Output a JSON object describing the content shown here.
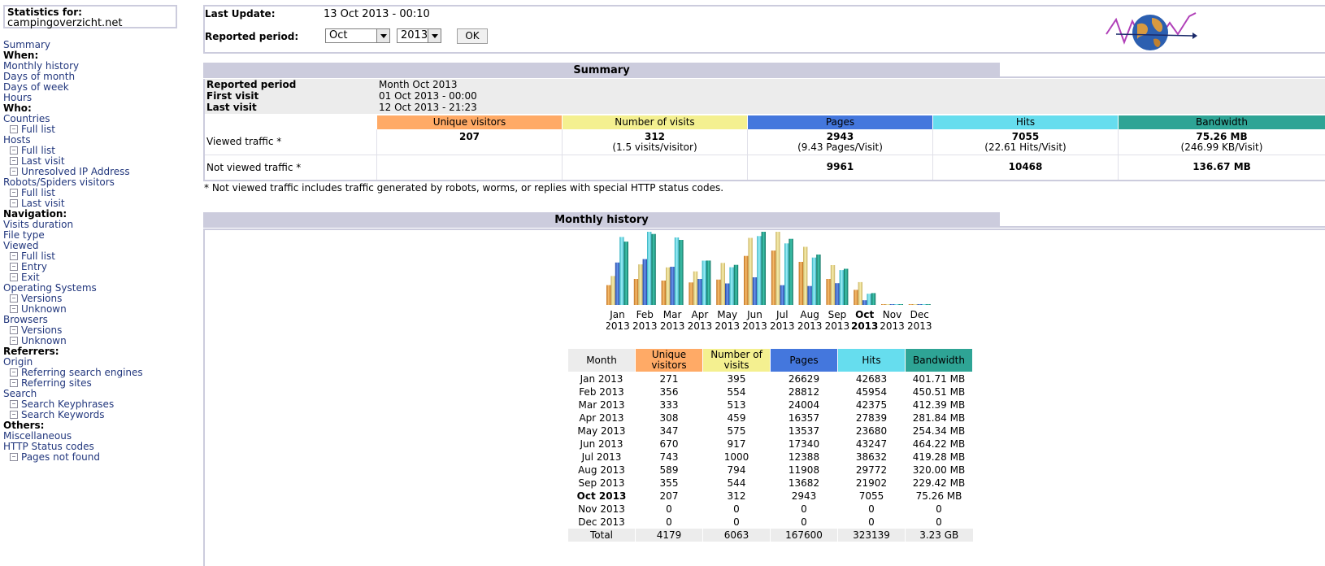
{
  "colors": {
    "unique_visitors": "#ffaa66",
    "visits": "#f4f090",
    "pages": "#4477dd",
    "hits": "#66ddee",
    "bandwidth": "#2ea495",
    "section_header": "#ccccdd"
  },
  "sidebar": {
    "stats_for_label": "Statistics for:",
    "site": "campingoverzicht.net",
    "items": [
      {
        "label": "Summary",
        "type": "link",
        "name": "menu-summary"
      },
      {
        "label": "When:",
        "type": "header",
        "name": "menu-header-when"
      },
      {
        "label": "Monthly history",
        "type": "link",
        "name": "menu-monthly-history"
      },
      {
        "label": "Days of month",
        "type": "link",
        "name": "menu-days-of-month"
      },
      {
        "label": "Days of week",
        "type": "link",
        "name": "menu-days-of-week"
      },
      {
        "label": "Hours",
        "type": "link",
        "name": "menu-hours"
      },
      {
        "label": "Who:",
        "type": "header",
        "name": "menu-header-who"
      },
      {
        "label": "Countries",
        "type": "link",
        "name": "menu-countries"
      },
      {
        "label": "Full list",
        "type": "sub",
        "name": "menu-countries-full-list"
      },
      {
        "label": "Hosts",
        "type": "link",
        "name": "menu-hosts"
      },
      {
        "label": "Full list",
        "type": "sub",
        "name": "menu-hosts-full-list"
      },
      {
        "label": "Last visit",
        "type": "sub",
        "name": "menu-hosts-last-visit"
      },
      {
        "label": "Unresolved IP Address",
        "type": "sub",
        "name": "menu-hosts-unresolved-ip"
      },
      {
        "label": "Robots/Spiders visitors",
        "type": "link",
        "name": "menu-robots"
      },
      {
        "label": "Full list",
        "type": "sub",
        "name": "menu-robots-full-list"
      },
      {
        "label": "Last visit",
        "type": "sub",
        "name": "menu-robots-last-visit"
      },
      {
        "label": "Navigation:",
        "type": "header",
        "name": "menu-header-navigation"
      },
      {
        "label": "Visits duration",
        "type": "link",
        "name": "menu-visits-duration"
      },
      {
        "label": "File type",
        "type": "link",
        "name": "menu-file-type"
      },
      {
        "label": "Viewed",
        "type": "link",
        "name": "menu-viewed"
      },
      {
        "label": "Full list",
        "type": "sub",
        "name": "menu-viewed-full-list"
      },
      {
        "label": "Entry",
        "type": "sub",
        "name": "menu-viewed-entry"
      },
      {
        "label": "Exit",
        "type": "sub",
        "name": "menu-viewed-exit"
      },
      {
        "label": "Operating Systems",
        "type": "link",
        "name": "menu-operating-systems"
      },
      {
        "label": "Versions",
        "type": "sub",
        "name": "menu-os-versions"
      },
      {
        "label": "Unknown",
        "type": "sub",
        "name": "menu-os-unknown"
      },
      {
        "label": "Browsers",
        "type": "link",
        "name": "menu-browsers"
      },
      {
        "label": "Versions",
        "type": "sub",
        "name": "menu-browsers-versions"
      },
      {
        "label": "Unknown",
        "type": "sub",
        "name": "menu-browsers-unknown"
      },
      {
        "label": "Referrers:",
        "type": "header",
        "name": "menu-header-referrers"
      },
      {
        "label": "Origin",
        "type": "link",
        "name": "menu-origin"
      },
      {
        "label": "Referring search engines",
        "type": "sub",
        "name": "menu-referring-search-engines"
      },
      {
        "label": "Referring sites",
        "type": "sub",
        "name": "menu-referring-sites"
      },
      {
        "label": "Search",
        "type": "link",
        "name": "menu-search"
      },
      {
        "label": "Search Keyphrases",
        "type": "sub",
        "name": "menu-search-keyphrases"
      },
      {
        "label": "Search Keywords",
        "type": "sub",
        "name": "menu-search-keywords"
      },
      {
        "label": "Others:",
        "type": "header",
        "name": "menu-header-others"
      },
      {
        "label": "Miscellaneous",
        "type": "link",
        "name": "menu-miscellaneous"
      },
      {
        "label": "HTTP Status codes",
        "type": "link",
        "name": "menu-http-status-codes"
      },
      {
        "label": "Pages not found",
        "type": "sub",
        "name": "menu-pages-not-found"
      }
    ]
  },
  "top": {
    "last_update_label": "Last Update:",
    "last_update_value": "13 Oct 2013 - 00:10",
    "reported_period_label": "Reported period:",
    "month_select": "Oct",
    "year_select": "2013",
    "ok_label": "OK",
    "logo_icon": "awstats-globe-logo"
  },
  "summary": {
    "title": "Summary",
    "reported_period_label": "Reported period",
    "reported_period_value": "Month Oct 2013",
    "first_visit_label": "First visit",
    "first_visit_value": "01 Oct 2013 - 00:00",
    "last_visit_label": "Last visit",
    "last_visit_value": "12 Oct 2013 - 21:23",
    "headers": [
      "Unique visitors",
      "Number of visits",
      "Pages",
      "Hits",
      "Bandwidth"
    ],
    "viewed_label": "Viewed traffic *",
    "viewed": {
      "unique": "207",
      "visits": "312",
      "visits_sub": "(1.5 visits/visitor)",
      "pages": "2943",
      "pages_sub": "(9.43 Pages/Visit)",
      "hits": "7055",
      "hits_sub": "(22.61 Hits/Visit)",
      "bandwidth": "75.26 MB",
      "bandwidth_sub": "(246.99 KB/Visit)"
    },
    "not_viewed_label": "Not viewed traffic *",
    "not_viewed": {
      "pages": "9961",
      "hits": "10468",
      "bandwidth": "136.67 MB"
    },
    "note": "* Not viewed traffic includes traffic generated by robots, worms, or replies with special HTTP status codes."
  },
  "history": {
    "title": "Monthly history",
    "headers": {
      "month": "Month",
      "unique": "Unique visitors",
      "visits": "Number of visits",
      "pages": "Pages",
      "hits": "Hits",
      "bandwidth": "Bandwidth"
    },
    "rows": [
      {
        "month": "Jan 2013",
        "unique": "271",
        "visits": "395",
        "pages": "26629",
        "hits": "42683",
        "bandwidth": "401.71 MB",
        "current": false
      },
      {
        "month": "Feb 2013",
        "unique": "356",
        "visits": "554",
        "pages": "28812",
        "hits": "45954",
        "bandwidth": "450.51 MB",
        "current": false
      },
      {
        "month": "Mar 2013",
        "unique": "333",
        "visits": "513",
        "pages": "24004",
        "hits": "42375",
        "bandwidth": "412.39 MB",
        "current": false
      },
      {
        "month": "Apr 2013",
        "unique": "308",
        "visits": "459",
        "pages": "16357",
        "hits": "27839",
        "bandwidth": "281.84 MB",
        "current": false
      },
      {
        "month": "May 2013",
        "unique": "347",
        "visits": "575",
        "pages": "13537",
        "hits": "23680",
        "bandwidth": "254.34 MB",
        "current": false
      },
      {
        "month": "Jun 2013",
        "unique": "670",
        "visits": "917",
        "pages": "17340",
        "hits": "43247",
        "bandwidth": "464.22 MB",
        "current": false
      },
      {
        "month": "Jul 2013",
        "unique": "743",
        "visits": "1000",
        "pages": "12388",
        "hits": "38632",
        "bandwidth": "419.28 MB",
        "current": false
      },
      {
        "month": "Aug 2013",
        "unique": "589",
        "visits": "794",
        "pages": "11908",
        "hits": "29772",
        "bandwidth": "320.00 MB",
        "current": false
      },
      {
        "month": "Sep 2013",
        "unique": "355",
        "visits": "544",
        "pages": "13682",
        "hits": "21902",
        "bandwidth": "229.42 MB",
        "current": false
      },
      {
        "month": "Oct 2013",
        "unique": "207",
        "visits": "312",
        "pages": "2943",
        "hits": "7055",
        "bandwidth": "75.26 MB",
        "current": true
      },
      {
        "month": "Nov 2013",
        "unique": "0",
        "visits": "0",
        "pages": "0",
        "hits": "0",
        "bandwidth": "0",
        "current": false
      },
      {
        "month": "Dec 2013",
        "unique": "0",
        "visits": "0",
        "pages": "0",
        "hits": "0",
        "bandwidth": "0",
        "current": false
      }
    ],
    "total": {
      "month": "Total",
      "unique": "4179",
      "visits": "6063",
      "pages": "167600",
      "hits": "323139",
      "bandwidth": "3.23 GB"
    }
  },
  "chart_data": {
    "type": "bar",
    "categories": [
      "Jan",
      "Feb",
      "Mar",
      "Apr",
      "May",
      "Jun",
      "Jul",
      "Aug",
      "Sep",
      "Oct",
      "Nov",
      "Dec"
    ],
    "category_years": [
      "2013",
      "2013",
      "2013",
      "2013",
      "2013",
      "2013",
      "2013",
      "2013",
      "2013",
      "2013",
      "2013",
      "2013"
    ],
    "current_category": "Oct",
    "series": [
      {
        "name": "Unique visitors",
        "values": [
          271,
          356,
          333,
          308,
          347,
          670,
          743,
          589,
          355,
          207,
          0,
          0
        ]
      },
      {
        "name": "Number of visits",
        "values": [
          395,
          554,
          513,
          459,
          575,
          917,
          1000,
          794,
          544,
          312,
          0,
          0
        ]
      },
      {
        "name": "Pages",
        "values": [
          26629,
          28812,
          24004,
          16357,
          13537,
          17340,
          12388,
          11908,
          13682,
          2943,
          0,
          0
        ]
      },
      {
        "name": "Hits",
        "values": [
          42683,
          45954,
          42375,
          27839,
          23680,
          43247,
          38632,
          29772,
          21902,
          7055,
          0,
          0
        ]
      },
      {
        "name": "Bandwidth (MB)",
        "values": [
          401.71,
          450.51,
          412.39,
          281.84,
          254.34,
          464.22,
          419.28,
          320.0,
          229.42,
          75.26,
          0,
          0
        ]
      }
    ],
    "scale_groups": [
      [
        0,
        1
      ],
      [
        2,
        3
      ],
      [
        4
      ]
    ]
  }
}
